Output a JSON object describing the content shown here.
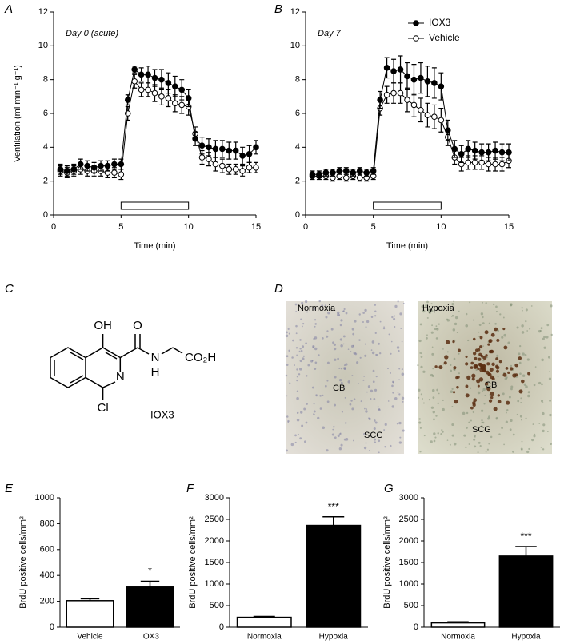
{
  "chart_data": [
    {
      "type": "line",
      "panel": "A",
      "title": "Day 0 (acute)",
      "xlabel": "Time (min)",
      "ylabel": "Ventilation (ml min⁻¹ g⁻¹)",
      "x": [
        0.5,
        1,
        1.5,
        2,
        2.5,
        3,
        3.5,
        4,
        4.5,
        5,
        5.5,
        6,
        6.5,
        7,
        7.5,
        8,
        8.5,
        9,
        9.5,
        10,
        10.5,
        11,
        11.5,
        12,
        12.5,
        13,
        13.5,
        14,
        14.5,
        15
      ],
      "xlim": [
        0,
        15
      ],
      "xticks": [
        0,
        5,
        10,
        15
      ],
      "ylim": [
        0,
        12
      ],
      "yticks": [
        0,
        2,
        4,
        6,
        8,
        10,
        12
      ],
      "shaded_interval": [
        5,
        10
      ],
      "series": [
        {
          "name": "IOX3",
          "color": "#000000",
          "marker_fill": "#000000",
          "values": [
            2.7,
            2.6,
            2.7,
            3.0,
            2.9,
            2.8,
            2.9,
            2.9,
            3.0,
            3.0,
            6.8,
            8.6,
            8.3,
            8.3,
            8.1,
            8.0,
            7.8,
            7.6,
            7.4,
            6.9,
            4.5,
            4.1,
            4.0,
            3.9,
            3.9,
            3.8,
            3.8,
            3.5,
            3.6,
            4.0
          ],
          "errors": [
            0.3,
            0.3,
            0.3,
            0.3,
            0.3,
            0.3,
            0.3,
            0.3,
            0.3,
            0.3,
            0.3,
            0.2,
            0.4,
            0.5,
            0.5,
            0.6,
            0.6,
            0.6,
            0.6,
            0.5,
            0.4,
            0.5,
            0.5,
            0.5,
            0.5,
            0.5,
            0.5,
            0.5,
            0.5,
            0.4
          ]
        },
        {
          "name": "Vehicle",
          "color": "#000000",
          "marker_fill": "#ffffff",
          "values": [
            2.6,
            2.5,
            2.6,
            2.7,
            2.6,
            2.6,
            2.6,
            2.5,
            2.5,
            2.4,
            6.0,
            7.9,
            7.4,
            7.4,
            7.2,
            7.0,
            6.9,
            6.6,
            6.5,
            6.4,
            4.8,
            3.4,
            3.3,
            3.0,
            2.9,
            2.7,
            2.7,
            2.6,
            2.8,
            2.8
          ],
          "errors": [
            0.3,
            0.3,
            0.3,
            0.3,
            0.3,
            0.3,
            0.3,
            0.3,
            0.3,
            0.3,
            0.4,
            0.4,
            0.4,
            0.4,
            0.5,
            0.5,
            0.5,
            0.5,
            0.5,
            0.5,
            0.4,
            0.4,
            0.4,
            0.4,
            0.4,
            0.3,
            0.3,
            0.3,
            0.3,
            0.3
          ]
        }
      ]
    },
    {
      "type": "line",
      "panel": "B",
      "title": "Day 7",
      "xlabel": "Time (min)",
      "legend": "upper right",
      "x": [
        0.5,
        1,
        1.5,
        2,
        2.5,
        3,
        3.5,
        4,
        4.5,
        5,
        5.5,
        6,
        6.5,
        7,
        7.5,
        8,
        8.5,
        9,
        9.5,
        10,
        10.5,
        11,
        11.5,
        12,
        12.5,
        13,
        13.5,
        14,
        14.5,
        15
      ],
      "xlim": [
        0,
        15
      ],
      "xticks": [
        0,
        5,
        10,
        15
      ],
      "ylim": [
        0,
        12
      ],
      "yticks": [
        0,
        2,
        4,
        6,
        8,
        10,
        12
      ],
      "shaded_interval": [
        5,
        10
      ],
      "series": [
        {
          "name": "IOX3",
          "color": "#000000",
          "marker_fill": "#000000",
          "values": [
            2.4,
            2.4,
            2.5,
            2.5,
            2.6,
            2.6,
            2.5,
            2.6,
            2.5,
            2.6,
            6.8,
            8.7,
            8.5,
            8.6,
            8.2,
            8.0,
            8.1,
            7.9,
            7.8,
            7.6,
            5.0,
            3.9,
            3.6,
            3.9,
            3.8,
            3.7,
            3.7,
            3.8,
            3.7,
            3.7
          ],
          "errors": [
            0.2,
            0.2,
            0.2,
            0.2,
            0.2,
            0.2,
            0.2,
            0.2,
            0.2,
            0.2,
            0.5,
            0.6,
            0.7,
            0.8,
            0.8,
            0.9,
            0.9,
            0.9,
            0.9,
            0.8,
            0.6,
            0.5,
            0.5,
            0.5,
            0.5,
            0.5,
            0.5,
            0.5,
            0.5,
            0.5
          ]
        },
        {
          "name": "Vehicle",
          "color": "#000000",
          "marker_fill": "#ffffff",
          "values": [
            2.3,
            2.3,
            2.3,
            2.2,
            2.3,
            2.2,
            2.3,
            2.2,
            2.2,
            2.3,
            6.3,
            7.1,
            7.2,
            7.2,
            6.8,
            6.5,
            6.2,
            5.9,
            5.8,
            5.6,
            4.6,
            3.4,
            3.0,
            3.1,
            3.1,
            3.1,
            3.0,
            3.0,
            3.0,
            3.2
          ],
          "errors": [
            0.2,
            0.2,
            0.2,
            0.2,
            0.2,
            0.2,
            0.2,
            0.2,
            0.2,
            0.2,
            0.4,
            0.5,
            0.6,
            0.6,
            0.7,
            0.7,
            0.7,
            0.7,
            0.7,
            0.7,
            0.5,
            0.4,
            0.4,
            0.4,
            0.4,
            0.4,
            0.4,
            0.4,
            0.4,
            0.4
          ]
        }
      ]
    },
    {
      "type": "bar",
      "panel": "E",
      "ylabel": "BrdU positive cells/mm²",
      "categories": [
        "Vehicle",
        "IOX3"
      ],
      "values": [
        205,
        310
      ],
      "errors": [
        15,
        45
      ],
      "significance": [
        null,
        "*"
      ],
      "colors": [
        "#ffffff",
        "#000000"
      ],
      "ylim": [
        0,
        1000
      ],
      "yticks": [
        0,
        200,
        400,
        600,
        800,
        1000
      ]
    },
    {
      "type": "bar",
      "panel": "F",
      "ylabel": "BrdU positive cells/mm²",
      "categories": [
        "Normoxia",
        "Hypoxia"
      ],
      "values": [
        230,
        2360
      ],
      "errors": [
        20,
        200
      ],
      "significance": [
        null,
        "***"
      ],
      "colors": [
        "#ffffff",
        "#000000"
      ],
      "ylim": [
        0,
        3000
      ],
      "yticks": [
        0,
        500,
        1000,
        1500,
        2000,
        2500,
        3000
      ]
    },
    {
      "type": "bar",
      "panel": "G",
      "ylabel": "BrdU positive cells/mm²",
      "categories": [
        "Normoxia",
        "Hypoxia"
      ],
      "values": [
        100,
        1650
      ],
      "errors": [
        25,
        220
      ],
      "significance": [
        null,
        "***"
      ],
      "colors": [
        "#ffffff",
        "#000000"
      ],
      "ylim": [
        0,
        3000
      ],
      "yticks": [
        0,
        500,
        1000,
        1500,
        2000,
        2500,
        3000
      ]
    }
  ],
  "panel_c": {
    "label": "C",
    "structure_labels": [
      "OH",
      "O",
      "N",
      "H",
      "CO₂H",
      "N",
      "Cl"
    ],
    "compound": "IOX3"
  },
  "panel_d": {
    "label": "D",
    "images": [
      {
        "label": "Normoxia",
        "regions": [
          "CB",
          "SCG"
        ]
      },
      {
        "label": "Hypoxia",
        "regions": [
          "CB",
          "SCG"
        ]
      }
    ]
  }
}
